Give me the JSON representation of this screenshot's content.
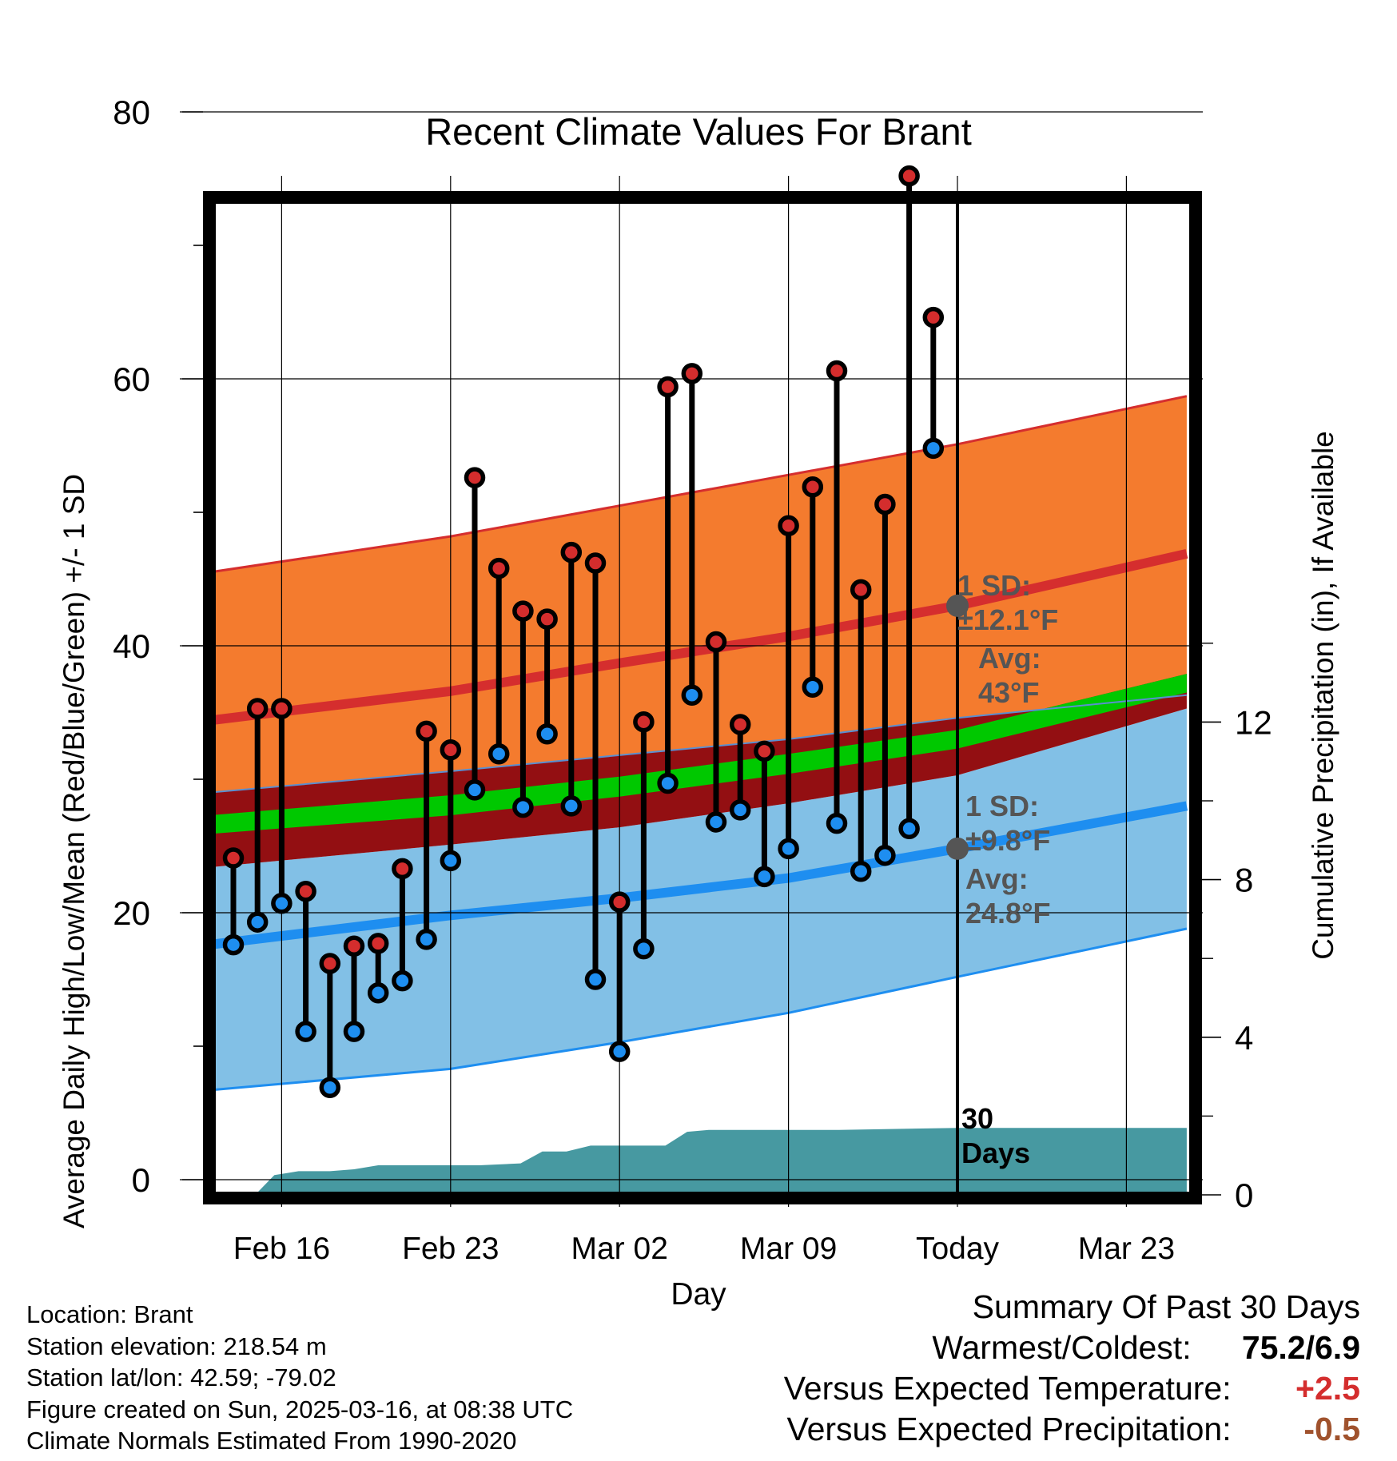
{
  "chart_data": {
    "type": "line",
    "title": "Recent Climate Values For Brant",
    "xlabel": "Day",
    "ylabel": "Average Daily High/Low/Mean (Red/Blue/Green) +/- 1 SD",
    "ylabel_right": "Cumulative Precipitation (in), If Available",
    "x_range_days": [
      -33,
      10
    ],
    "y_range": [
      0,
      80
    ],
    "y_right_range": [
      0,
      16
    ],
    "y_ticks": [
      "0",
      "20",
      "40",
      "60",
      "80"
    ],
    "y_right_ticks": [
      "0",
      "4",
      "8",
      "12"
    ],
    "x_ticks": [
      {
        "day": -28,
        "label": "Feb 16"
      },
      {
        "day": -21,
        "label": "Feb 23"
      },
      {
        "day": -14,
        "label": "Mar 02"
      },
      {
        "day": -7,
        "label": "Mar 09"
      },
      {
        "day": 0,
        "label": "Today"
      },
      {
        "day": 7,
        "label": "Mar 23"
      }
    ],
    "grid": true,
    "today_line_day": 0,
    "normals": {
      "high_mean": [
        [
          -31,
          34.4
        ],
        [
          -21,
          36.6
        ],
        [
          -14,
          38.7
        ],
        [
          -7,
          40.7
        ],
        [
          0,
          43.0
        ],
        [
          9.5,
          46.9
        ]
      ],
      "high_upper": [
        [
          -31,
          45.5
        ],
        [
          -21,
          48.2
        ],
        [
          -14,
          50.5
        ],
        [
          -7,
          52.8
        ],
        [
          0,
          55.1
        ],
        [
          9.5,
          58.7
        ]
      ],
      "high_lower": [
        [
          -31,
          29.0
        ],
        [
          -21,
          30.6
        ],
        [
          -14,
          31.8
        ],
        [
          -7,
          33.0
        ],
        [
          0,
          34.6
        ],
        [
          9.5,
          36.3
        ]
      ],
      "mean_upper": [
        [
          -31,
          27.3
        ],
        [
          -21,
          28.8
        ],
        [
          -14,
          30.2
        ],
        [
          -7,
          31.9
        ],
        [
          0,
          33.7
        ],
        [
          9.5,
          37.9
        ]
      ],
      "mean_lower": [
        [
          -31,
          25.9
        ],
        [
          -21,
          27.3
        ],
        [
          -14,
          28.7
        ],
        [
          -7,
          30.4
        ],
        [
          0,
          32.3
        ],
        [
          9.5,
          36.5
        ]
      ],
      "low_mean": [
        [
          -31,
          17.6
        ],
        [
          -21,
          19.8
        ],
        [
          -14,
          21.1
        ],
        [
          -7,
          22.6
        ],
        [
          0,
          24.8
        ],
        [
          9.5,
          28.0
        ]
      ],
      "low_upper": [
        [
          -31,
          23.4
        ],
        [
          -21,
          25.1
        ],
        [
          -14,
          26.4
        ],
        [
          -7,
          28.2
        ],
        [
          0,
          30.3
        ],
        [
          9.5,
          35.3
        ]
      ],
      "low_lower": [
        [
          -31,
          6.7
        ],
        [
          -21,
          8.3
        ],
        [
          -14,
          10.3
        ],
        [
          -7,
          12.5
        ],
        [
          0,
          15.2
        ],
        [
          9.5,
          18.8
        ]
      ]
    },
    "band_colors": {
      "high_band": "#f47b2e",
      "high_edge": "#d52e2e",
      "mean_green": "#00c800",
      "mean_band": "#930f12",
      "low_band": "#82c0e6",
      "low_edge": "#1e8ef0",
      "precip": "#4799a1",
      "high_point": "#d42d2d",
      "low_point": "#1e8ef0",
      "marker_gray": "#555555",
      "label_gray": "#555555"
    },
    "annotations": {
      "high_sd": "1 SD:",
      "high_sd_value": "±12.1°F",
      "high_avg": "Avg:",
      "high_avg_value": "43°F",
      "low_sd": "1 SD:",
      "low_sd_value": "±9.8°F",
      "low_avg": "Avg:",
      "low_avg_value": "24.8°F",
      "window_days": "30",
      "window_unit": "Days"
    },
    "series": [
      {
        "name": "High",
        "color": "#d42d2d",
        "x": [
          -30,
          -29,
          -28,
          -27,
          -26,
          -25,
          -24,
          -23,
          -22,
          -21,
          -20,
          -19,
          -18,
          -17,
          -16,
          -15,
          -14,
          -13,
          -12,
          -11,
          -10,
          -9,
          -8,
          -7,
          -6,
          -5,
          -4,
          -3,
          -2,
          -1
        ],
        "values": [
          24.1,
          35.3,
          35.3,
          21.6,
          16.2,
          17.5,
          17.7,
          23.3,
          33.6,
          32.2,
          52.6,
          45.8,
          42.6,
          42.0,
          47.0,
          46.2,
          20.8,
          34.3,
          59.4,
          60.4,
          40.3,
          34.1,
          32.1,
          49.0,
          51.9,
          60.6,
          44.2,
          50.6,
          75.2,
          64.6
        ]
      },
      {
        "name": "Low",
        "color": "#1e8ef0",
        "x": [
          -30,
          -29,
          -28,
          -27,
          -26,
          -25,
          -24,
          -23,
          -22,
          -21,
          -20,
          -19,
          -18,
          -17,
          -16,
          -15,
          -14,
          -13,
          -12,
          -11,
          -10,
          -9,
          -8,
          -7,
          -6,
          -5,
          -4,
          -3,
          -2,
          -1
        ],
        "values": [
          17.6,
          19.3,
          20.7,
          11.1,
          6.9,
          11.1,
          14.0,
          14.9,
          18.0,
          23.9,
          29.2,
          31.9,
          27.9,
          33.4,
          28.0,
          15.0,
          9.6,
          17.3,
          29.7,
          36.3,
          26.8,
          27.7,
          22.7,
          24.8,
          36.9,
          26.7,
          23.1,
          24.3,
          26.3,
          54.8
        ]
      },
      {
        "name": "Cumulative Precipitation",
        "color": "#4799a1",
        "x": [
          -31,
          -29.1,
          -28.3,
          -27.8,
          -27.3,
          -26.0,
          -25.0,
          -24.0,
          -22.0,
          -21.0,
          -19.8,
          -18.1,
          -17.2,
          -16.2,
          -15.2,
          -13.9,
          -12.1,
          -11.2,
          -10.3,
          -9.5,
          -8.0,
          -4.9,
          0,
          9.5
        ],
        "values": [
          0,
          0,
          0.5,
          0.55,
          0.6,
          0.6,
          0.65,
          0.75,
          0.75,
          0.75,
          0.75,
          0.8,
          1.1,
          1.1,
          1.25,
          1.25,
          1.25,
          1.6,
          1.65,
          1.65,
          1.65,
          1.65,
          1.7,
          1.7
        ]
      }
    ]
  },
  "footer": {
    "location": "Location: Brant",
    "elevation": "Station elevation: 218.54 m",
    "latlon": "Station lat/lon: 42.59; -79.02",
    "created": "Figure created on Sun, 2025-03-16, at 08:38 UTC",
    "normals": "Climate Normals Estimated From 1990-2020"
  },
  "summary": {
    "heading": "Summary Of Past 30 Days",
    "warmest_label": "Warmest/Coldest:",
    "warmest_value": "75.2/6.9",
    "temp_label": "Versus Expected Temperature:",
    "temp_value": "+2.5",
    "precip_label": "Versus Expected Precipitation:",
    "precip_value": "-0.5"
  }
}
